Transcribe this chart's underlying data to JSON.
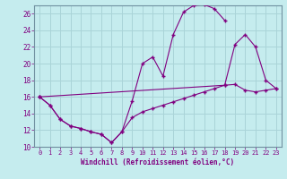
{
  "xlabel": "Windchill (Refroidissement éolien,°C)",
  "xlim": [
    -0.5,
    23.5
  ],
  "ylim": [
    10,
    27
  ],
  "xticks": [
    0,
    1,
    2,
    3,
    4,
    5,
    6,
    7,
    8,
    9,
    10,
    11,
    12,
    13,
    14,
    15,
    16,
    17,
    18,
    19,
    20,
    21,
    22,
    23
  ],
  "yticks": [
    10,
    12,
    14,
    16,
    18,
    20,
    22,
    24,
    26
  ],
  "background_color": "#c5ecee",
  "grid_color": "#aad4d8",
  "line_color": "#800080",
  "curves": [
    {
      "x": [
        0,
        1,
        2,
        3,
        4,
        5,
        6,
        7,
        8,
        9,
        10,
        11,
        12,
        13,
        14,
        15,
        16,
        17,
        18
      ],
      "y": [
        16.0,
        15.0,
        13.3,
        12.5,
        12.2,
        11.8,
        11.5,
        10.5,
        11.8,
        15.5,
        20.0,
        20.8,
        18.5,
        23.5,
        26.2,
        27.0,
        27.1,
        26.6,
        25.2
      ]
    },
    {
      "x": [
        0,
        1,
        2,
        3,
        4,
        5,
        6,
        7,
        8,
        9,
        10,
        11,
        12,
        13,
        14,
        15,
        16,
        17,
        18,
        19,
        20,
        21,
        22,
        23
      ],
      "y": [
        16.0,
        15.0,
        13.3,
        12.5,
        12.2,
        11.8,
        11.5,
        10.5,
        11.8,
        13.5,
        14.2,
        14.6,
        15.0,
        15.4,
        15.8,
        16.2,
        16.6,
        17.0,
        17.4,
        17.5,
        16.8,
        16.6,
        16.8,
        17.0
      ]
    },
    {
      "x": [
        0,
        18,
        19,
        20,
        21,
        22,
        23
      ],
      "y": [
        16.0,
        17.4,
        22.3,
        23.5,
        22.0,
        18.0,
        17.0
      ]
    }
  ]
}
